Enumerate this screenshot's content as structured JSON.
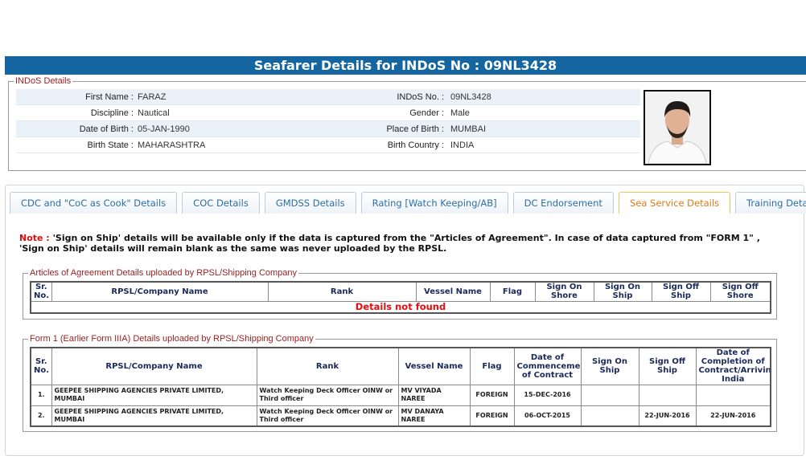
{
  "header": {
    "title": "Seafarer Details for INDoS No : 09NL3428"
  },
  "indos_details": {
    "legend": "INDoS Details",
    "rows": [
      [
        {
          "label": "First Name :",
          "value": "FARAZ"
        },
        {
          "label": "INDoS No. :",
          "value": "09NL3428"
        }
      ],
      [
        {
          "label": "Discipline :",
          "value": "Nautical"
        },
        {
          "label": "Gender :",
          "value": "Male"
        }
      ],
      [
        {
          "label": "Date of Birth :",
          "value": "05-JAN-1990"
        },
        {
          "label": "Place of Birth :",
          "value": "MUMBAI"
        }
      ],
      [
        {
          "label": "Birth State :",
          "value": "MAHARASHTRA"
        },
        {
          "label": "Birth Country :",
          "value": "INDIA"
        }
      ]
    ]
  },
  "tabs": [
    {
      "label": "CDC and \"CoC as Cook\" Details",
      "active": false
    },
    {
      "label": "COC Details",
      "active": false
    },
    {
      "label": "GMDSS Details",
      "active": false
    },
    {
      "label": "Rating [Watch Keeping/AB]",
      "active": false
    },
    {
      "label": "DC Endorsement",
      "active": false
    },
    {
      "label": "Sea Service Details",
      "active": true
    },
    {
      "label": "Training Details",
      "active": false
    }
  ],
  "note": {
    "prefix": "Note :",
    "text": "'Sign on Ship' details will be available only if the data is captured from the \"Articles of Agreement\". In case of data captured from \"FORM 1\" , 'Sign on Ship' details will remain blank as the same was never uploaded by the RPSL."
  },
  "articles": {
    "legend": "Articles of Agreement Details uploaded by RPSL/Shipping Company",
    "headers": [
      "Sr. No.",
      "RPSL/Company Name",
      "Rank",
      "Vessel Name",
      "Flag",
      "Sign On Shore",
      "Sign On Ship",
      "Sign Off Ship",
      "Sign Off Shore"
    ],
    "rows": [],
    "empty_message": "Details not found"
  },
  "form1": {
    "legend": "Form 1 (Earlier Form IIIA) Details uploaded by RPSL/Shipping Company",
    "headers": [
      "Sr. No.",
      "RPSL/Company Name",
      "Rank",
      "Vessel Name",
      "Flag",
      "Date of Commencement of Contract",
      "Sign On Ship",
      "Sign Off Ship",
      "Date of Completion of Contract/Arriving India"
    ],
    "rows": [
      [
        "1.",
        "GEEPEE SHIPPING AGENCIES PRIVATE LIMITED, MUMBAI",
        "Watch Keeping Deck Officer OINW or Third officer",
        "MV VIYADA NAREE",
        "FOREIGN",
        "15-DEC-2016",
        null,
        null,
        null
      ],
      [
        "2.",
        "GEEPEE SHIPPING AGENCIES PRIVATE LIMITED, MUMBAI",
        "Watch Keeping Deck Officer OINW or Third officer",
        "MV DANAYA NAREE",
        "FOREIGN",
        "06-OCT-2015",
        null,
        "22-JUN-2016",
        "22-JUN-2016"
      ]
    ]
  }
}
